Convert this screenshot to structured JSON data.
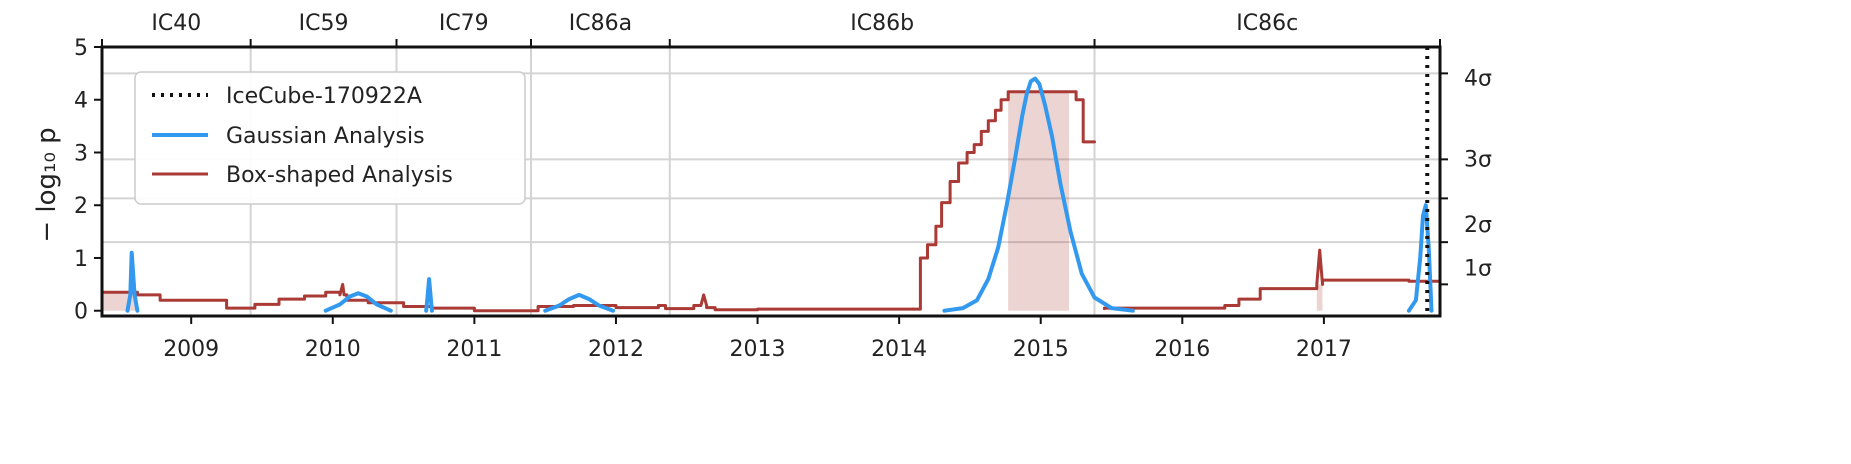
{
  "chart_data": {
    "type": "line",
    "title": "",
    "xlabel": "",
    "ylabel": "− log₁₀ p",
    "xlim": [
      2008.37,
      2017.82
    ],
    "ylim": [
      -0.1,
      5
    ],
    "x_ticks": [
      2009,
      2010,
      2011,
      2012,
      2013,
      2014,
      2015,
      2016,
      2017
    ],
    "x_tick_labels": [
      "2009",
      "2010",
      "2011",
      "2012",
      "2013",
      "2014",
      "2015",
      "2016",
      "2017"
    ],
    "y_ticks": [
      0,
      1,
      2,
      3,
      4,
      5
    ],
    "y_tick_labels": [
      "0",
      "1",
      "2",
      "3",
      "4",
      "5"
    ],
    "sigma_axis": {
      "values": [
        0.5,
        1.3,
        2.13,
        2.87,
        4.5
      ],
      "labels": [
        "1σ",
        "2σ",
        "3σ",
        "4σ"
      ],
      "label_values": [
        0.8,
        1.63,
        2.87,
        4.4
      ]
    },
    "seasons": {
      "boundaries": [
        2008.37,
        2009.42,
        2010.45,
        2011.4,
        2012.38,
        2015.38,
        2017.82
      ],
      "labels": [
        "IC40",
        "IC59",
        "IC79",
        "IC86a",
        "IC86b",
        "IC86c"
      ]
    },
    "sigma_gridlines": [
      1.3,
      2.13,
      2.87,
      4.5
    ],
    "grid": true,
    "legend": {
      "position": "top-left",
      "entries": [
        "IceCube-170922A",
        "Gaussian Analysis",
        "Box-shaped Analysis"
      ]
    },
    "event_line": {
      "name": "IceCube-170922A",
      "x": 2017.73,
      "color": "#111111",
      "style": "dotted"
    },
    "series": [
      {
        "name": "Gaussian Analysis",
        "color": "#3399ee",
        "segments": [
          {
            "x": [
              2008.55,
              2008.57,
              2008.58,
              2008.6,
              2008.62
            ],
            "y": [
              0,
              0.3,
              1.1,
              0.3,
              0
            ]
          },
          {
            "x": [
              2009.95,
              2010.05,
              2010.12,
              2010.18,
              2010.24,
              2010.31,
              2010.41
            ],
            "y": [
              0,
              0.12,
              0.27,
              0.33,
              0.27,
              0.12,
              0
            ]
          },
          {
            "x": [
              2010.66,
              2010.67,
              2010.68,
              2010.69,
              2010.7
            ],
            "y": [
              0,
              0.3,
              0.6,
              0.3,
              0
            ]
          },
          {
            "x": [
              2011.5,
              2011.6,
              2011.67,
              2011.74,
              2011.81,
              2011.88,
              2011.98
            ],
            "y": [
              0,
              0.1,
              0.22,
              0.3,
              0.22,
              0.1,
              0
            ]
          },
          {
            "x": [
              2014.32,
              2014.45,
              2014.55,
              2014.63,
              2014.7,
              2014.76,
              2014.82,
              2014.87,
              2014.9,
              2014.93,
              2014.96,
              2014.99,
              2015.03,
              2015.08,
              2015.14,
              2015.21,
              2015.29,
              2015.38,
              2015.5,
              2015.65
            ],
            "y": [
              0,
              0.05,
              0.2,
              0.6,
              1.2,
              2.0,
              2.9,
              3.7,
              4.1,
              4.35,
              4.4,
              4.3,
              3.9,
              3.3,
              2.4,
              1.5,
              0.7,
              0.25,
              0.05,
              0
            ]
          },
          {
            "x": [
              2017.6,
              2017.65,
              2017.68,
              2017.7,
              2017.72,
              2017.74,
              2017.76
            ],
            "y": [
              0,
              0.2,
              1.0,
              1.8,
              2.0,
              1.2,
              0
            ]
          }
        ]
      },
      {
        "name": "Box-shaped Analysis",
        "color": "#aa3a35",
        "segments": [
          {
            "x": [
              2008.37,
              2008.62,
              2008.62,
              2008.78,
              2008.78,
              2009.25,
              2009.25,
              2009.45,
              2009.45,
              2009.62,
              2009.62,
              2009.8,
              2009.8,
              2009.95,
              2009.95,
              2010.05,
              2010.05,
              2010.07,
              2010.08,
              2010.1,
              2010.1,
              2010.25,
              2010.25,
              2010.5,
              2010.5,
              2010.7,
              2010.7,
              2011.0,
              2011.0,
              2011.45,
              2011.45,
              2011.7,
              2011.7,
              2012.0,
              2012.0,
              2012.3,
              2012.3,
              2012.35,
              2012.35,
              2012.55,
              2012.55,
              2012.6,
              2012.62,
              2012.64,
              2012.64,
              2012.7,
              2012.7,
              2013.0,
              2013.0,
              2014.1
            ],
            "y": [
              0.35,
              0.35,
              0.3,
              0.3,
              0.2,
              0.2,
              0.05,
              0.05,
              0.12,
              0.12,
              0.22,
              0.22,
              0.28,
              0.28,
              0.35,
              0.35,
              0.3,
              0.5,
              0.3,
              0.3,
              0.2,
              0.2,
              0.15,
              0.15,
              0.08,
              0.08,
              0.05,
              0.05,
              0.0,
              0.0,
              0.08,
              0.08,
              0.1,
              0.1,
              0.06,
              0.06,
              0.1,
              0.1,
              0.04,
              0.04,
              0.1,
              0.1,
              0.3,
              0.1,
              0.06,
              0.06,
              0.02,
              0.02,
              0.03,
              0.03
            ]
          },
          {
            "x": [
              2014.1,
              2014.15,
              2014.15,
              2014.2,
              2014.2,
              2014.26,
              2014.26,
              2014.3,
              2014.3,
              2014.36,
              2014.36,
              2014.42,
              2014.42,
              2014.48,
              2014.48,
              2014.53,
              2014.53,
              2014.58,
              2014.58,
              2014.63,
              2014.63,
              2014.68,
              2014.68,
              2014.72,
              2014.72,
              2014.77,
              2014.77,
              2015.25,
              2015.25,
              2015.3,
              2015.3,
              2015.38
            ],
            "y": [
              0.03,
              0.03,
              1.0,
              1.0,
              1.25,
              1.25,
              1.6,
              1.6,
              2.05,
              2.05,
              2.45,
              2.45,
              2.8,
              2.8,
              3.0,
              3.0,
              3.15,
              3.15,
              3.4,
              3.4,
              3.6,
              3.6,
              3.8,
              3.8,
              4.0,
              4.0,
              4.15,
              4.15,
              4.0,
              4.0,
              3.2,
              3.2
            ]
          },
          {
            "x": [
              2015.45,
              2015.45,
              2016.3,
              2016.3,
              2016.4,
              2016.4,
              2016.55,
              2016.55,
              2016.95,
              2016.95,
              2016.97,
              2016.99,
              2016.99,
              2017.6,
              2017.6,
              2017.82
            ],
            "y": [
              0.04,
              0.05,
              0.05,
              0.1,
              0.1,
              0.22,
              0.22,
              0.42,
              0.42,
              0.5,
              1.15,
              0.5,
              0.58,
              0.58,
              0.56,
              0.56
            ]
          }
        ]
      }
    ],
    "shaded_regions": [
      {
        "x": [
          2008.37,
          2008.62
        ],
        "y": [
          0,
          0.35
        ]
      },
      {
        "x": [
          2014.77,
          2015.2
        ],
        "y": [
          0,
          4.15
        ]
      },
      {
        "x": [
          2016.95,
          2016.99
        ],
        "y": [
          0,
          0.5
        ]
      }
    ]
  }
}
